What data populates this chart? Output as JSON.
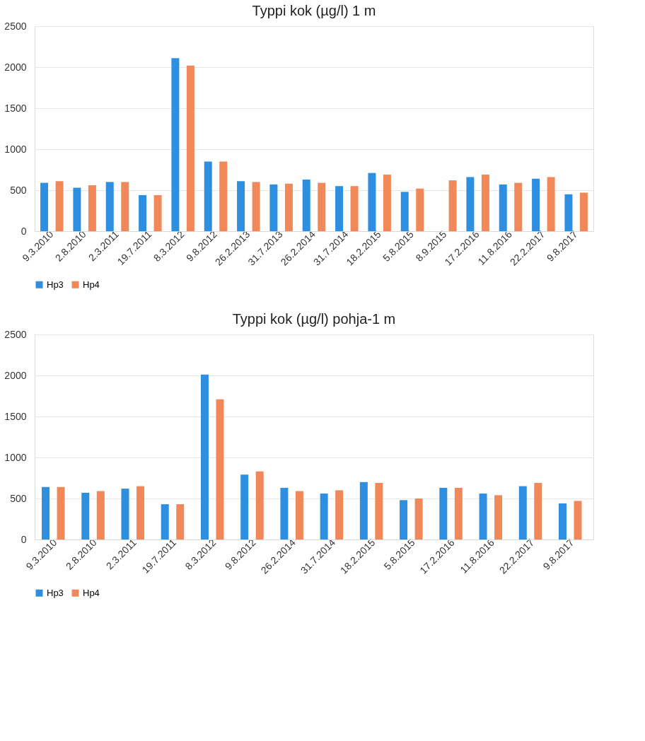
{
  "chart_data": [
    {
      "type": "bar",
      "title": "Typpi kok (µg/l) 1 m",
      "categories": [
        "9.3.2010",
        "2.8.2010",
        "2.3.2011",
        "19.7.2011",
        "8.3.2012",
        "9.8.2012",
        "26.2.2013",
        "31.7.2013",
        "26.2.2014",
        "31.7.2014",
        "18.2.2015",
        "5.8.2015",
        "8.9.2015",
        "17.2.2016",
        "11.8.2016",
        "22.2.2017",
        "9.8.2017"
      ],
      "series": [
        {
          "name": "Hp3",
          "color": "#2e8fe0",
          "values": [
            590,
            530,
            600,
            440,
            2110,
            850,
            610,
            570,
            630,
            550,
            710,
            480,
            null,
            660,
            570,
            640,
            450
          ]
        },
        {
          "name": "Hp4",
          "color": "#f0885a",
          "values": [
            610,
            560,
            600,
            440,
            2020,
            850,
            600,
            580,
            590,
            550,
            690,
            520,
            620,
            690,
            590,
            660,
            470
          ]
        }
      ],
      "ylim": [
        0,
        2500
      ],
      "yticks": [
        0,
        500,
        1000,
        1500,
        2000,
        2500
      ],
      "grid": "y",
      "legend": "bottom"
    },
    {
      "type": "bar",
      "title": "Typpi kok (µg/l) pohja-1 m",
      "categories": [
        "9.3.2010",
        "2.8.2010",
        "2.3.2011",
        "19.7.2011",
        "8.3.2012",
        "9.8.2012",
        "26.2.2014",
        "31.7.2014",
        "18.2.2015",
        "5.8.2015",
        "17.2.2016",
        "11.8.2016",
        "22.2.2017",
        "9.8.2017"
      ],
      "series": [
        {
          "name": "Hp3",
          "color": "#2e8fe0",
          "values": [
            640,
            570,
            620,
            430,
            2010,
            790,
            630,
            560,
            700,
            480,
            630,
            560,
            650,
            440
          ]
        },
        {
          "name": "Hp4",
          "color": "#f0885a",
          "values": [
            640,
            590,
            650,
            430,
            1710,
            830,
            590,
            600,
            690,
            500,
            630,
            540,
            690,
            470
          ]
        }
      ],
      "ylim": [
        0,
        2500
      ],
      "yticks": [
        0,
        500,
        1000,
        1500,
        2000,
        2500
      ],
      "grid": "y",
      "legend": "bottom"
    }
  ]
}
